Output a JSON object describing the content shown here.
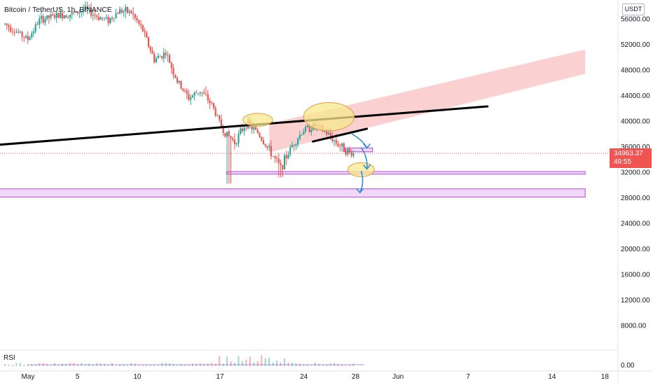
{
  "header": {
    "title": "Bitcoin / TetherUS, 1h, BINANCE",
    "currency": "USDT"
  },
  "price_tag": {
    "price": "34963.37",
    "countdown": "49:55"
  },
  "rsi": {
    "label": "RSI",
    "value_label": "0.00"
  },
  "colors": {
    "up": "#26a69a",
    "down": "#ef5350",
    "trendline": "#000000",
    "channel_fill": "#f9c0c0",
    "zone_stroke": "#b04ad8",
    "zone_fill": "#f0d6f7",
    "highlight_fill": "#f7e98d",
    "highlight_stroke": "#e79a3c",
    "arrow": "#2f8fd8",
    "price_line": "#ef5350",
    "price_tag_bg": "#f05350"
  },
  "chart_data": {
    "type": "candlestick",
    "symbol": "Bitcoin / TetherUS",
    "interval": "1h",
    "exchange": "BINANCE",
    "x_ticks": [
      "May",
      "5",
      "10",
      "17",
      "24",
      "28",
      "Jun",
      "7",
      "14",
      "18"
    ],
    "y_ticks": [
      56000,
      52000,
      48000,
      44000,
      40000,
      36000,
      32000,
      28000,
      24000,
      20000,
      16000,
      12000,
      8000
    ],
    "y_tick_labels": [
      "56000.00",
      "52000.00",
      "48000.00",
      "44000.00",
      "40000.00",
      "36000.00",
      "32000.00",
      "28000.00",
      "24000.00",
      "20000.00",
      "16000.00",
      "12000.00",
      "8000.00"
    ],
    "ylim": [
      5000,
      57600
    ],
    "x_range_days": [
      -0.5,
      50.5
    ],
    "last_price": 34963.37,
    "price_path": [
      [
        0,
        55200
      ],
      [
        1,
        54000
      ],
      [
        2,
        52800
      ],
      [
        3,
        55800
      ],
      [
        4,
        56300
      ],
      [
        5,
        56600
      ],
      [
        6,
        56800
      ],
      [
        7,
        57500
      ],
      [
        8,
        56400
      ],
      [
        9,
        55800
      ],
      [
        10,
        57300
      ],
      [
        11,
        57000
      ],
      [
        12,
        54200
      ],
      [
        13,
        49600
      ],
      [
        14,
        50700
      ],
      [
        15,
        46200
      ],
      [
        16,
        43600
      ],
      [
        17,
        44800
      ],
      [
        18,
        42600
      ],
      [
        19,
        38500
      ],
      [
        20,
        36700
      ],
      [
        21,
        39700
      ],
      [
        22,
        38200
      ],
      [
        23,
        35400
      ],
      [
        24,
        32700
      ],
      [
        25,
        36200
      ],
      [
        26,
        38600
      ],
      [
        27,
        39300
      ],
      [
        28,
        38100
      ],
      [
        29,
        36400
      ],
      [
        30,
        35000
      ],
      [
        30.4,
        34963.37
      ]
    ],
    "annotations": {
      "trendlines": [
        {
          "from": [
            -0.5,
            36300
          ],
          "to": [
            42,
            42300
          ]
        },
        {
          "from": [
            26.8,
            36800
          ],
          "to": [
            31.5,
            38800
          ]
        }
      ],
      "channel": {
        "upper": [
          [
            23,
            39600
          ],
          [
            50.5,
            51200
          ]
        ],
        "lower": [
          [
            23,
            35100
          ],
          [
            50.5,
            47400
          ]
        ]
      },
      "horizontal_zones": [
        {
          "low": 31700,
          "high": 32100,
          "x_from": 19.3,
          "x_to": 50.5
        },
        {
          "low": 28100,
          "high": 29400,
          "x_from": -0.5,
          "x_to": 50.5
        },
        {
          "low": 35200,
          "high": 35800,
          "x_from": 29.6,
          "x_to": 32.0
        }
      ],
      "ellipses": [
        {
          "center": [
            22.0,
            40200
          ],
          "rx_days": 1.3,
          "ry_price": 1000
        },
        {
          "center": [
            28.2,
            40700
          ],
          "rx_days": 2.2,
          "ry_price": 2200
        },
        {
          "center": [
            31.0,
            32400
          ],
          "rx_days": 1.15,
          "ry_price": 1100
        }
      ],
      "arrows": [
        {
          "path": [
            [
              30.2,
              38000
            ],
            [
              31.5,
              35800
            ]
          ],
          "kind": "down"
        },
        {
          "path": [
            [
              31.0,
              35900
            ],
            [
              31.5,
              32500
            ]
          ],
          "kind": "down"
        },
        {
          "path": [
            [
              31.0,
              32200
            ],
            [
              30.9,
              28800
            ]
          ],
          "kind": "down"
        }
      ]
    }
  }
}
